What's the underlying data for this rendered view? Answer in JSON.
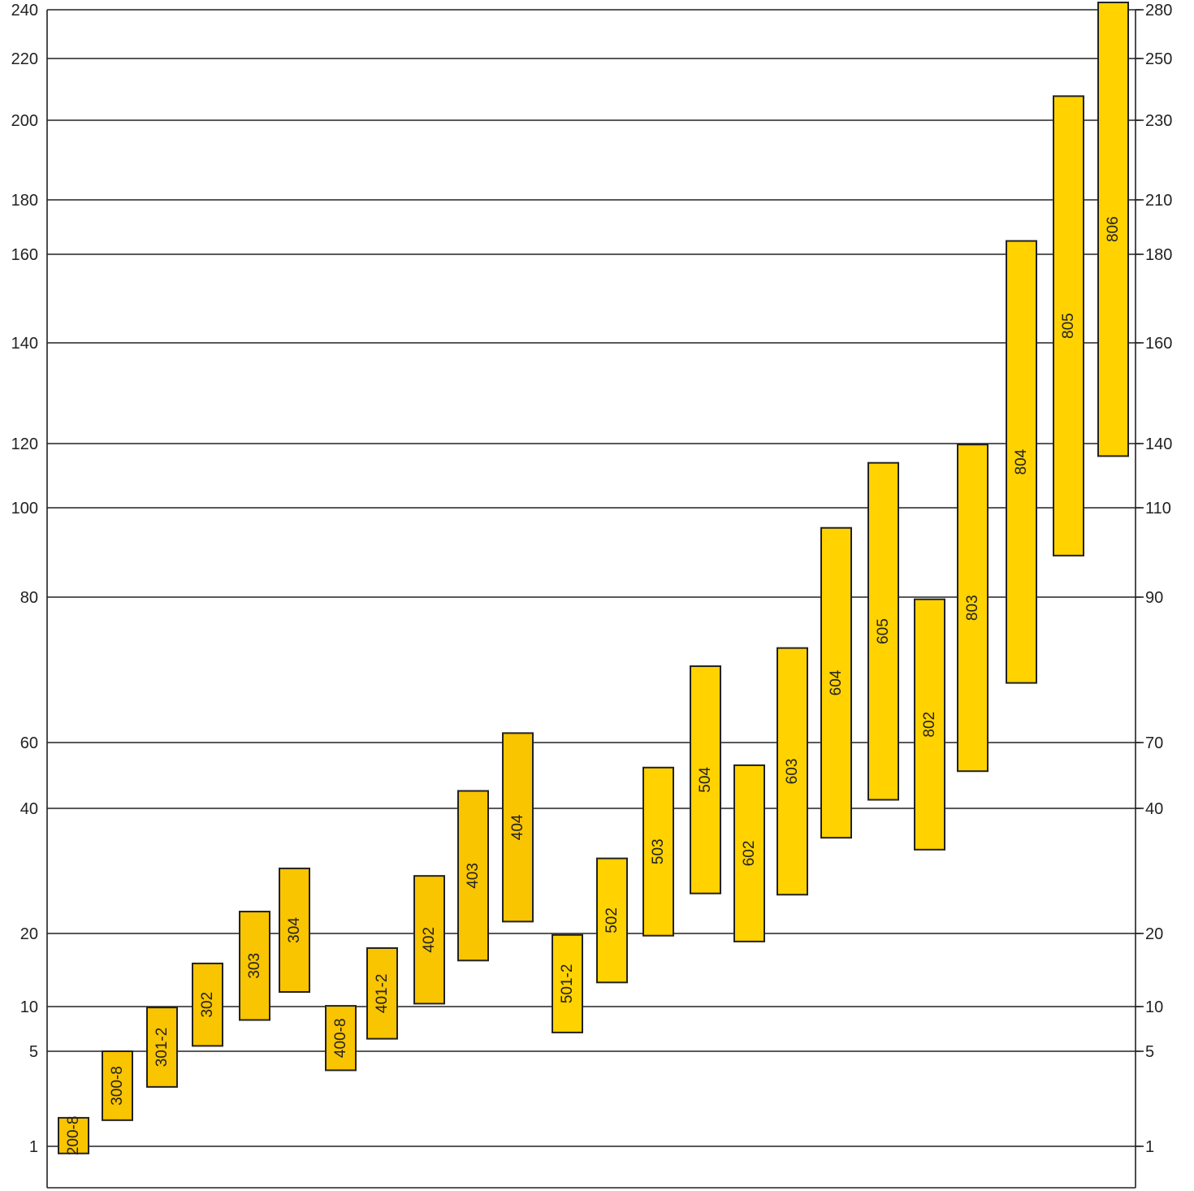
{
  "chart_data": {
    "type": "bar",
    "subtype": "floating-range",
    "title": "",
    "xlabel": "",
    "ylabel": "",
    "grid": true,
    "colors": {
      "bar": "#FFD200",
      "bar_left": "#F9C400",
      "line": "#222222"
    },
    "left_axis": {
      "ticks": [
        {
          "label": "240"
        },
        {
          "label": "220"
        },
        {
          "label": "200"
        },
        {
          "label": "180"
        },
        {
          "label": "160"
        },
        {
          "label": "140"
        },
        {
          "label": "120"
        },
        {
          "label": "100"
        },
        {
          "label": "80"
        },
        {
          "label": "60"
        },
        {
          "label": "40"
        },
        {
          "label": "20"
        },
        {
          "label": "10"
        },
        {
          "label": "5"
        },
        {
          "label": "1"
        }
      ]
    },
    "right_axis": {
      "ticks": [
        {
          "label": "280"
        },
        {
          "label": "250"
        },
        {
          "label": "230"
        },
        {
          "label": "210"
        },
        {
          "label": "180"
        },
        {
          "label": "160"
        },
        {
          "label": "140"
        },
        {
          "label": "110"
        },
        {
          "label": "90"
        },
        {
          "label": "70"
        },
        {
          "label": "40"
        },
        {
          "label": "20"
        },
        {
          "label": "10"
        },
        {
          "label": "5"
        },
        {
          "label": "1"
        }
      ]
    },
    "bars": [
      {
        "label": "200-8",
        "low": 0.7,
        "high": 2.2
      },
      {
        "label": "300-8",
        "low": 2.1,
        "high": 5.0
      },
      {
        "label": "301-2",
        "low": 3.5,
        "high": 9.9
      },
      {
        "label": "302",
        "low": 5.6,
        "high": 15.9
      },
      {
        "label": "303",
        "low": 8.5,
        "high": 23.5
      },
      {
        "label": "304",
        "low": 12.0,
        "high": 30.4
      },
      {
        "label": "400-8",
        "low": 4.2,
        "high": 10.1
      },
      {
        "label": "401-2",
        "low": 6.4,
        "high": 18.0
      },
      {
        "label": "402",
        "low": 10.4,
        "high": 29.2
      },
      {
        "label": "403",
        "low": 16.3,
        "high": 45.3
      },
      {
        "label": "404",
        "low": 21.9,
        "high": 61.3
      },
      {
        "label": "501-2",
        "low": 7.1,
        "high": 19.8
      },
      {
        "label": "502",
        "low": 13.3,
        "high": 32.0
      },
      {
        "label": "503",
        "low": 19.7,
        "high": 52.4
      },
      {
        "label": "504",
        "low": 26.4,
        "high": 70.5
      },
      {
        "label": "602",
        "low": 18.9,
        "high": 53.1
      },
      {
        "label": "603",
        "low": 26.2,
        "high": 73.0
      },
      {
        "label": "604",
        "low": 35.3,
        "high": 95.5
      },
      {
        "label": "605",
        "low": 42.6,
        "high": 114.0
      },
      {
        "label": "802",
        "low": 33.4,
        "high": 79.7
      },
      {
        "label": "803",
        "low": 51.3,
        "high": 119.7
      },
      {
        "label": "804",
        "low": 68.2,
        "high": 164.9
      },
      {
        "label": "805",
        "low": 89.3,
        "high": 207.8
      },
      {
        "label": "806",
        "low": 116.1,
        "high": 243.0
      }
    ]
  }
}
